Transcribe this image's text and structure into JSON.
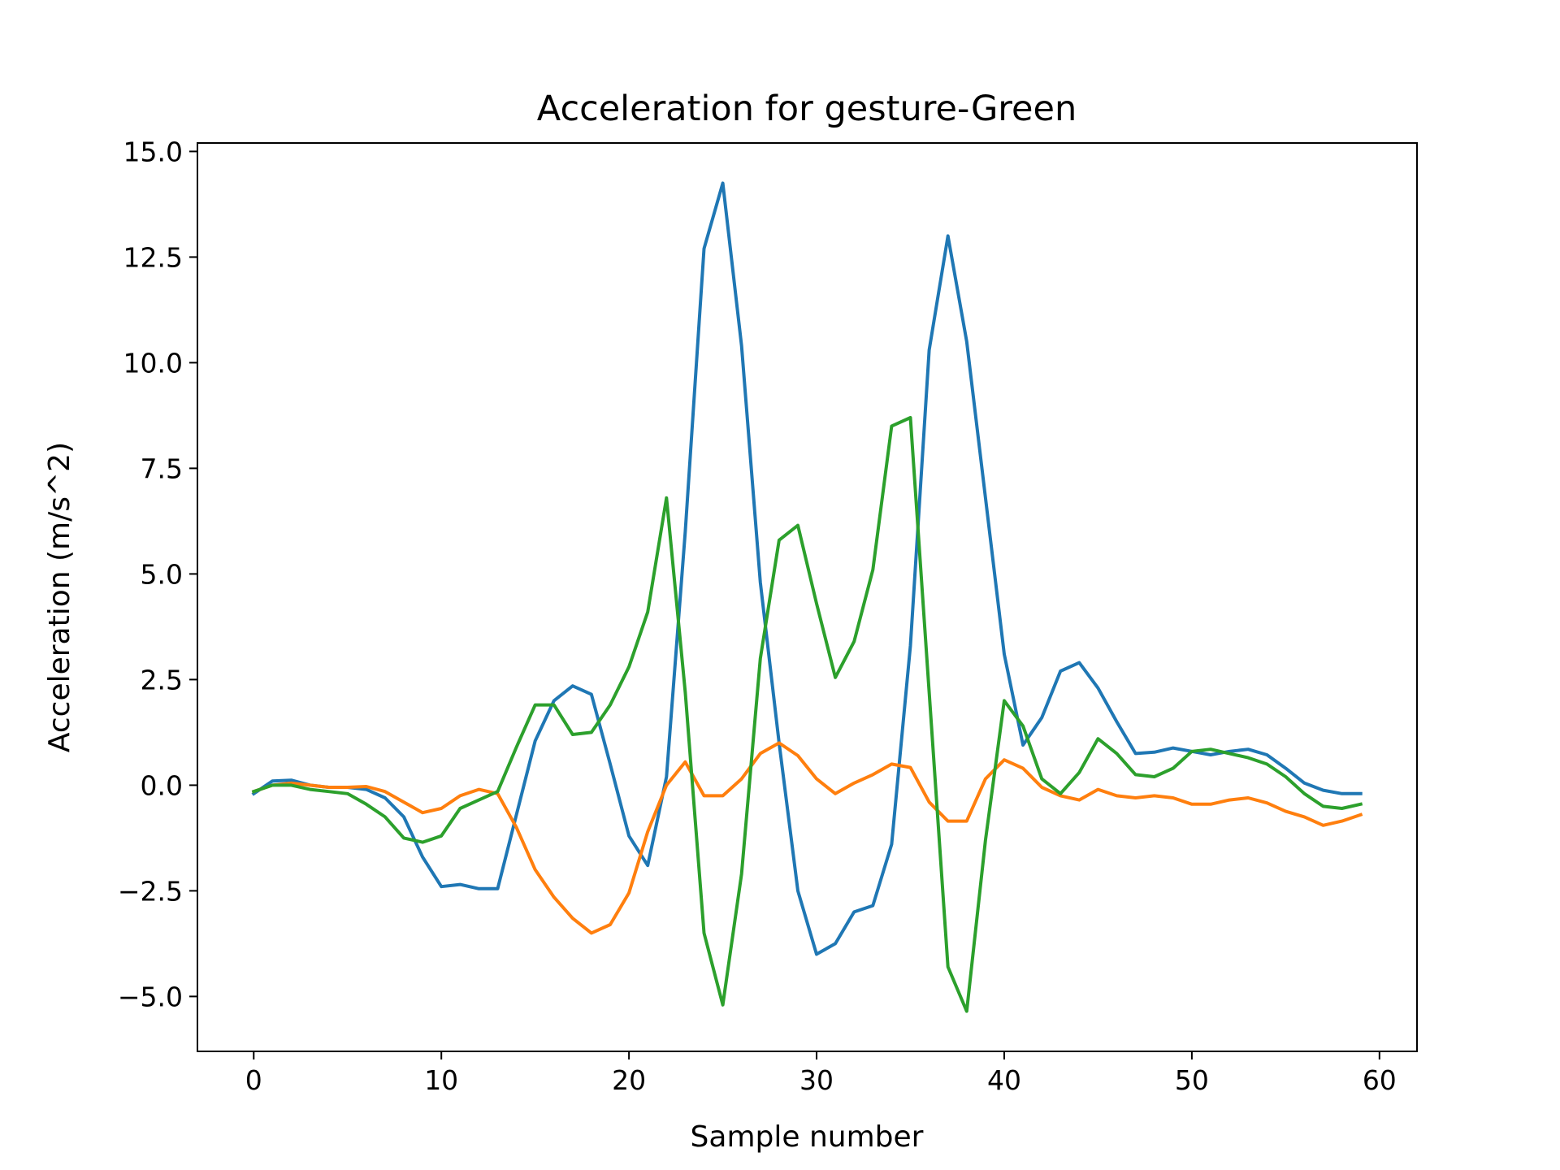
{
  "chart_data": {
    "type": "line",
    "title": "Acceleration for gesture-Green",
    "xlabel": "Sample number",
    "ylabel": "Acceleration (m/s^2)",
    "xlim": [
      -3,
      62
    ],
    "ylim": [
      -6.3,
      15.2
    ],
    "xticks": [
      0,
      10,
      20,
      30,
      40,
      50,
      60
    ],
    "xtick_labels": [
      "0",
      "10",
      "20",
      "30",
      "40",
      "50",
      "60"
    ],
    "yticks": [
      -5.0,
      -2.5,
      0.0,
      2.5,
      5.0,
      7.5,
      10.0,
      12.5,
      15.0
    ],
    "ytick_labels": [
      "−5.0",
      "−2.5",
      "0.0",
      "2.5",
      "5.0",
      "7.5",
      "10.0",
      "12.5",
      "15.0"
    ],
    "grid": false,
    "legend": "none",
    "x": [
      0,
      1,
      2,
      3,
      4,
      5,
      6,
      7,
      8,
      9,
      10,
      11,
      12,
      13,
      14,
      15,
      16,
      17,
      18,
      19,
      20,
      21,
      22,
      23,
      24,
      25,
      26,
      27,
      28,
      29,
      30,
      31,
      32,
      33,
      34,
      35,
      36,
      37,
      38,
      39,
      40,
      41,
      42,
      43,
      44,
      45,
      46,
      47,
      48,
      49,
      50,
      51,
      52,
      53,
      54,
      55,
      56,
      57,
      58,
      59
    ],
    "series": [
      {
        "color": "#1f77b4",
        "values": [
          -0.2,
          0.1,
          0.12,
          0.0,
          -0.05,
          -0.05,
          -0.1,
          -0.3,
          -0.75,
          -1.7,
          -2.4,
          -2.35,
          -2.45,
          -2.45,
          -0.7,
          1.05,
          2.0,
          2.35,
          2.15,
          0.5,
          -1.2,
          -1.9,
          0.2,
          6.0,
          12.7,
          14.25,
          10.4,
          4.8,
          1.0,
          -2.5,
          -4.0,
          -3.75,
          -3.0,
          -2.85,
          -1.4,
          3.3,
          10.3,
          13.0,
          10.5,
          6.8,
          3.1,
          0.95,
          1.6,
          2.7,
          2.9,
          2.3,
          1.5,
          0.75,
          0.78,
          0.88,
          0.8,
          0.72,
          0.8,
          0.85,
          0.72,
          0.4,
          0.05,
          -0.12,
          -0.2,
          -0.2
        ]
      },
      {
        "color": "#ff7f0e",
        "values": [
          -0.15,
          0.0,
          0.05,
          0.0,
          -0.05,
          -0.05,
          -0.03,
          -0.15,
          -0.4,
          -0.65,
          -0.55,
          -0.25,
          -0.1,
          -0.2,
          -1.0,
          -2.0,
          -2.65,
          -3.15,
          -3.5,
          -3.3,
          -2.55,
          -1.1,
          0.0,
          0.55,
          -0.25,
          -0.25,
          0.15,
          0.75,
          1.0,
          0.7,
          0.15,
          -0.2,
          0.05,
          0.25,
          0.5,
          0.42,
          -0.4,
          -0.85,
          -0.85,
          0.15,
          0.6,
          0.4,
          -0.05,
          -0.25,
          -0.35,
          -0.1,
          -0.25,
          -0.3,
          -0.25,
          -0.3,
          -0.45,
          -0.45,
          -0.35,
          -0.3,
          -0.42,
          -0.62,
          -0.75,
          -0.95,
          -0.85,
          -0.7
        ]
      },
      {
        "color": "#2ca02c",
        "values": [
          -0.15,
          0.0,
          0.0,
          -0.1,
          -0.15,
          -0.2,
          -0.45,
          -0.75,
          -1.25,
          -1.35,
          -1.2,
          -0.55,
          -0.35,
          -0.15,
          0.9,
          1.9,
          1.9,
          1.2,
          1.25,
          1.9,
          2.8,
          4.1,
          6.8,
          2.2,
          -3.5,
          -5.2,
          -2.1,
          3.0,
          5.8,
          6.15,
          4.3,
          2.55,
          3.4,
          5.1,
          8.5,
          8.7,
          2.2,
          -4.3,
          -5.35,
          -1.3,
          2.0,
          1.4,
          0.15,
          -0.2,
          0.3,
          1.1,
          0.75,
          0.25,
          0.2,
          0.4,
          0.8,
          0.85,
          0.75,
          0.65,
          0.5,
          0.2,
          -0.2,
          -0.5,
          -0.55,
          -0.45
        ]
      }
    ]
  }
}
